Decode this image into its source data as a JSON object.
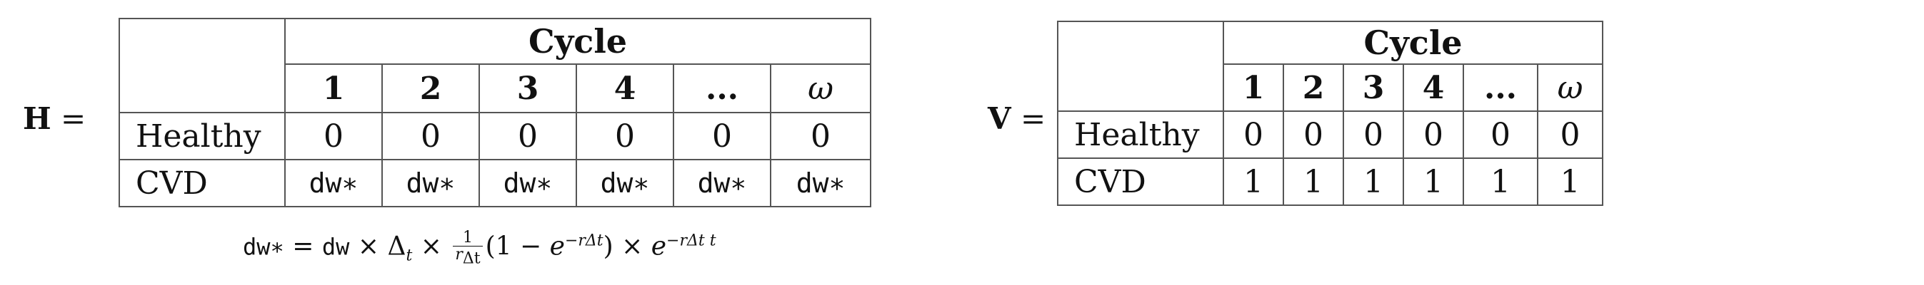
{
  "matrix_h": {
    "label": "H",
    "equals": "=",
    "header": "Cycle",
    "columns": [
      "1",
      "2",
      "3",
      "4",
      "...",
      "ω"
    ],
    "rows": [
      {
        "label": "Healthy",
        "values": [
          "0",
          "0",
          "0",
          "0",
          "0",
          "0"
        ]
      },
      {
        "label": "CVD",
        "values": [
          "dw∗",
          "dw∗",
          "dw∗",
          "dw∗",
          "dw∗",
          "dw∗"
        ]
      }
    ]
  },
  "matrix_v": {
    "label": "V",
    "equals": "=",
    "header": "Cycle",
    "columns": [
      "1",
      "2",
      "3",
      "4",
      "...",
      "ω"
    ],
    "rows": [
      {
        "label": "Healthy",
        "values": [
          "0",
          "0",
          "0",
          "0",
          "0",
          "0"
        ]
      },
      {
        "label": "CVD",
        "values": [
          "1",
          "1",
          "1",
          "1",
          "1",
          "1"
        ]
      }
    ]
  },
  "formula": {
    "lhs": "dw∗",
    "equals": " = ",
    "dw": "dw",
    "times": " × ",
    "delta": "Δ",
    "sub_t": "t",
    "frac_num": "1",
    "frac_den_r": "r",
    "frac_den_sub": "Δt",
    "paren_open": "(1 − ",
    "e": "e",
    "exp1": "−rΔt",
    "paren_close": ")",
    "exp2": "−rΔt t"
  }
}
